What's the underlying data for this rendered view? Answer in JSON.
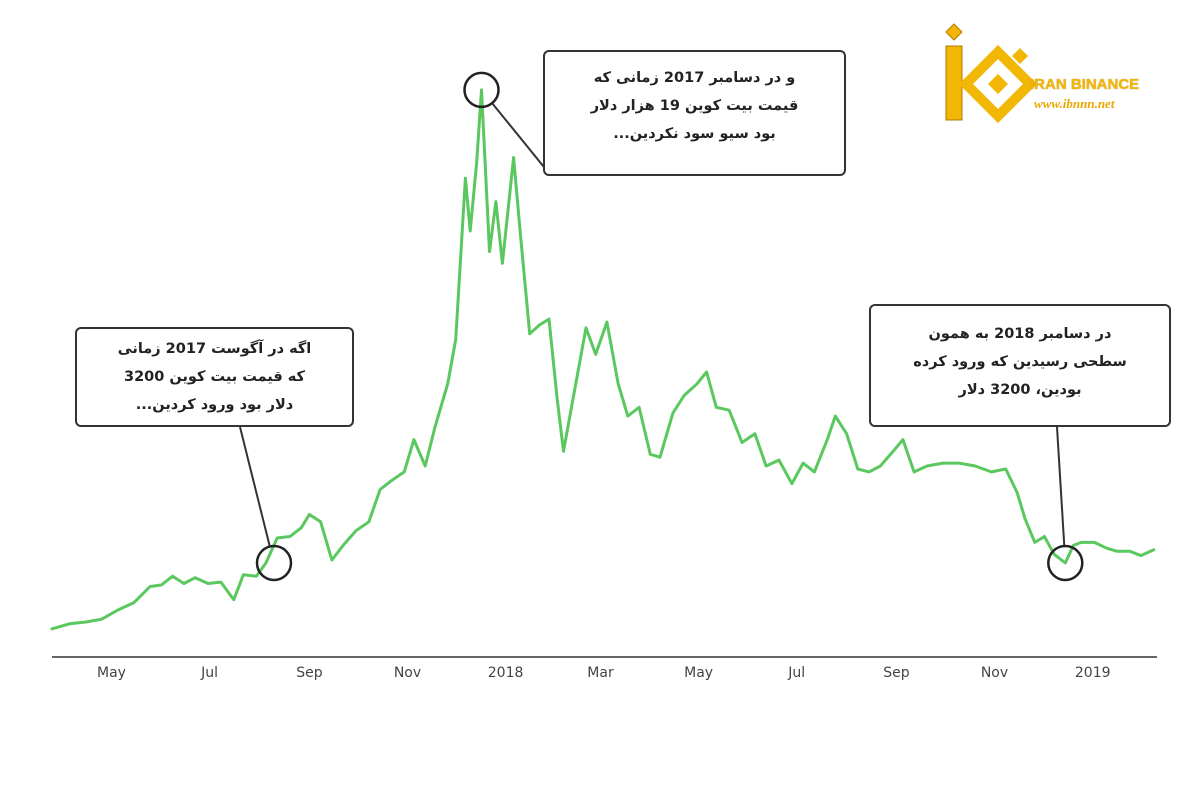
{
  "brand": {
    "name": "IRAN BINANCE",
    "url": "www.ibnnn.net",
    "color": "#f2b705"
  },
  "callouts": {
    "aug2017": [
      "اگه در آگوست 2017 زمانی",
      "که قیمت بیت کوین 3200",
      "دلار بود ورود کردین..."
    ],
    "dec2017": [
      "و در دسامبر 2017 زمانی که",
      "قیمت بیت کوین 19 هزار دلار",
      "بود سیو سود نکردین..."
    ],
    "dec2018": [
      "در دسامبر 2018 به همون",
      "سطحی رسیدین که ورود کرده",
      "بودین، 3200 دلار"
    ]
  },
  "chart_data": {
    "type": "line",
    "title": "",
    "xlabel": "",
    "ylabel": "",
    "line_color": "#5ac85f",
    "grid": false,
    "x_axis_ticks": [
      {
        "label": "May",
        "date": "2017-05-01"
      },
      {
        "label": "Jul",
        "date": "2017-07-01"
      },
      {
        "label": "Sep",
        "date": "2017-09-01"
      },
      {
        "label": "Nov",
        "date": "2017-11-01"
      },
      {
        "label": "2018",
        "date": "2018-01-01"
      },
      {
        "label": "Mar",
        "date": "2018-03-01"
      },
      {
        "label": "May",
        "date": "2018-05-01"
      },
      {
        "label": "Jul",
        "date": "2018-07-01"
      },
      {
        "label": "Sep",
        "date": "2018-09-01"
      },
      {
        "label": "Nov",
        "date": "2018-11-01"
      },
      {
        "label": "2019",
        "date": "2019-01-01"
      }
    ],
    "xlim": [
      "2017-03-25",
      "2019-02-10"
    ],
    "ylim": [
      0,
      21000
    ],
    "series": [
      {
        "values": [
          [
            "2017-03-25",
            960
          ],
          [
            "2017-04-05",
            1130
          ],
          [
            "2017-04-15",
            1190
          ],
          [
            "2017-04-25",
            1290
          ],
          [
            "2017-05-05",
            1600
          ],
          [
            "2017-05-15",
            1850
          ],
          [
            "2017-05-25",
            2400
          ],
          [
            "2017-06-01",
            2450
          ],
          [
            "2017-06-08",
            2750
          ],
          [
            "2017-06-15",
            2500
          ],
          [
            "2017-06-22",
            2700
          ],
          [
            "2017-06-30",
            2500
          ],
          [
            "2017-07-08",
            2550
          ],
          [
            "2017-07-16",
            1950
          ],
          [
            "2017-07-22",
            2800
          ],
          [
            "2017-07-30",
            2750
          ],
          [
            "2017-08-05",
            3200
          ],
          [
            "2017-08-12",
            4050
          ],
          [
            "2017-08-20",
            4100
          ],
          [
            "2017-08-27",
            4400
          ],
          [
            "2017-09-01",
            4850
          ],
          [
            "2017-09-08",
            4600
          ],
          [
            "2017-09-15",
            3300
          ],
          [
            "2017-09-22",
            3800
          ],
          [
            "2017-09-30",
            4300
          ],
          [
            "2017-10-08",
            4600
          ],
          [
            "2017-10-15",
            5700
          ],
          [
            "2017-10-22",
            6000
          ],
          [
            "2017-10-30",
            6300
          ],
          [
            "2017-11-05",
            7400
          ],
          [
            "2017-11-12",
            6500
          ],
          [
            "2017-11-18",
            7800
          ],
          [
            "2017-11-26",
            9300
          ],
          [
            "2017-12-01",
            10800
          ],
          [
            "2017-12-07",
            16300
          ],
          [
            "2017-12-10",
            14500
          ],
          [
            "2017-12-14",
            16800
          ],
          [
            "2017-12-17",
            19300
          ],
          [
            "2017-12-22",
            13800
          ],
          [
            "2017-12-26",
            15500
          ],
          [
            "2017-12-30",
            13400
          ],
          [
            "2018-01-06",
            17000
          ],
          [
            "2018-01-10",
            14500
          ],
          [
            "2018-01-16",
            11000
          ],
          [
            "2018-01-22",
            11300
          ],
          [
            "2018-01-28",
            11500
          ],
          [
            "2018-02-02",
            8800
          ],
          [
            "2018-02-06",
            7000
          ],
          [
            "2018-02-12",
            8800
          ],
          [
            "2018-02-20",
            11200
          ],
          [
            "2018-02-26",
            10300
          ],
          [
            "2018-03-05",
            11400
          ],
          [
            "2018-03-12",
            9300
          ],
          [
            "2018-03-18",
            8200
          ],
          [
            "2018-03-25",
            8500
          ],
          [
            "2018-04-01",
            6900
          ],
          [
            "2018-04-07",
            6800
          ],
          [
            "2018-04-15",
            8300
          ],
          [
            "2018-04-22",
            8900
          ],
          [
            "2018-04-30",
            9300
          ],
          [
            "2018-05-06",
            9700
          ],
          [
            "2018-05-12",
            8500
          ],
          [
            "2018-05-20",
            8400
          ],
          [
            "2018-05-28",
            7300
          ],
          [
            "2018-06-05",
            7600
          ],
          [
            "2018-06-12",
            6500
          ],
          [
            "2018-06-20",
            6700
          ],
          [
            "2018-06-28",
            5900
          ],
          [
            "2018-07-05",
            6600
          ],
          [
            "2018-07-12",
            6300
          ],
          [
            "2018-07-20",
            7400
          ],
          [
            "2018-07-25",
            8200
          ],
          [
            "2018-08-01",
            7600
          ],
          [
            "2018-08-08",
            6400
          ],
          [
            "2018-08-15",
            6300
          ],
          [
            "2018-08-22",
            6500
          ],
          [
            "2018-08-30",
            7000
          ],
          [
            "2018-09-05",
            7400
          ],
          [
            "2018-09-12",
            6300
          ],
          [
            "2018-09-20",
            6500
          ],
          [
            "2018-09-30",
            6600
          ],
          [
            "2018-10-10",
            6600
          ],
          [
            "2018-10-20",
            6500
          ],
          [
            "2018-10-30",
            6300
          ],
          [
            "2018-11-08",
            6400
          ],
          [
            "2018-11-15",
            5600
          ],
          [
            "2018-11-20",
            4700
          ],
          [
            "2018-11-26",
            3900
          ],
          [
            "2018-12-02",
            4100
          ],
          [
            "2018-12-08",
            3500
          ],
          [
            "2018-12-15",
            3200
          ],
          [
            "2018-12-20",
            3800
          ],
          [
            "2018-12-25",
            3900
          ],
          [
            "2019-01-02",
            3900
          ],
          [
            "2019-01-10",
            3700
          ],
          [
            "2019-01-16",
            3600
          ],
          [
            "2019-01-24",
            3600
          ],
          [
            "2019-01-31",
            3450
          ],
          [
            "2019-02-08",
            3650
          ]
        ]
      }
    ],
    "highlights": [
      {
        "date": "2017-08-10",
        "value": 3200
      },
      {
        "date": "2017-12-17",
        "value": 19300
      },
      {
        "date": "2018-12-15",
        "value": 3200
      }
    ]
  }
}
